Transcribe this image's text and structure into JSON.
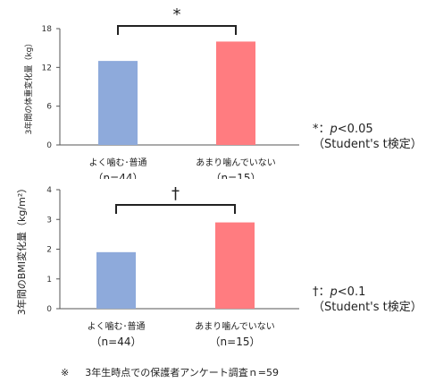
{
  "chart_data": [
    {
      "type": "bar",
      "categories": [
        "よく噛む･普通",
        "あまり噛んでいない"
      ],
      "sample_sizes": [
        "（n=44）",
        "（n=15）"
      ],
      "values": [
        13,
        16
      ],
      "ylabel": "3年間の体重変化量（kg）",
      "yticks": [
        0,
        6,
        12,
        18
      ],
      "ylim": [
        0,
        18
      ],
      "bar_colors": [
        "#8eaadb",
        "#ff7c80"
      ],
      "significance_marker": "*",
      "grid": false
    },
    {
      "type": "bar",
      "categories": [
        "よく噛む･普通",
        "あまり噛んでいない"
      ],
      "sample_sizes": [
        "（n=44）",
        "（n=15）"
      ],
      "values": [
        1.9,
        2.9
      ],
      "ylabel": "3年間のBMI変化量（kg/m²）",
      "yticks": [
        0,
        1,
        2,
        3,
        4
      ],
      "ylim": [
        0,
        4
      ],
      "bar_colors": [
        "#8eaadb",
        "#ff7c80"
      ],
      "significance_marker": "†",
      "grid": false
    }
  ],
  "notes": {
    "n1": {
      "sym": "*",
      "colon": "：",
      "p": "p",
      "thr": "<0.05",
      "test": "（Student's t検定）"
    },
    "n2": {
      "sym": "†",
      "colon": "：",
      "p": "p",
      "thr": "<0.1",
      "test": "（Student's t検定）"
    }
  },
  "footnote": {
    "mark": "※",
    "text": "3年生時点での保護者アンケート調査ｎ=59"
  }
}
